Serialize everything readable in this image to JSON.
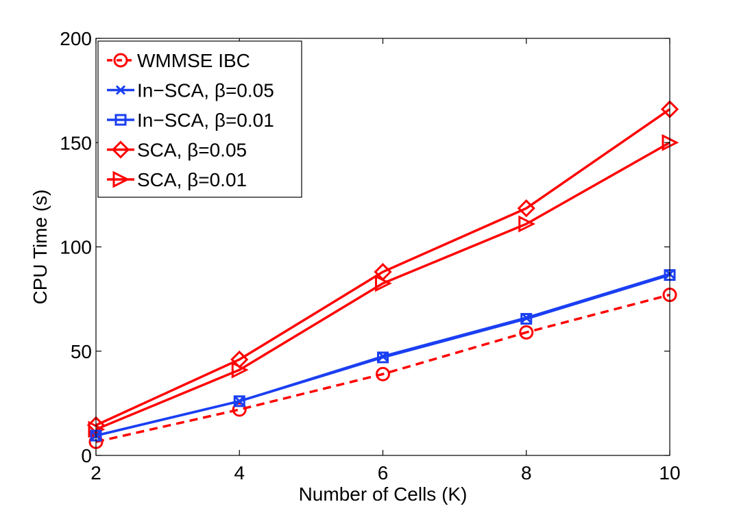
{
  "chart_data": {
    "type": "line",
    "title": "",
    "xlabel": "Number of Cells (K)",
    "ylabel": "CPU Time (s)",
    "xlim": [
      2,
      10
    ],
    "ylim": [
      0,
      200
    ],
    "x_ticks": [
      2,
      4,
      6,
      8,
      10
    ],
    "y_ticks": [
      0,
      50,
      100,
      150,
      200
    ],
    "grid": false,
    "legend_position": "top-left",
    "x": [
      2,
      4,
      6,
      8,
      10
    ],
    "series": [
      {
        "name": "WMMSE IBC",
        "values": [
          6.5,
          22,
          39,
          59,
          77
        ],
        "color": "#ff0000",
        "dash": "dashed",
        "marker": "circle"
      },
      {
        "name": "In−SCA, β=0.05",
        "values": [
          9.5,
          26,
          47.5,
          66,
          87
        ],
        "color": "#1a3ff2",
        "dash": "solid",
        "marker": "x"
      },
      {
        "name": "In−SCA, β=0.01",
        "values": [
          9.5,
          26,
          47,
          65.5,
          86.5
        ],
        "color": "#1a3ff2",
        "dash": "solid",
        "marker": "square"
      },
      {
        "name": "SCA, β=0.05",
        "values": [
          14.5,
          46,
          88,
          118.5,
          166
        ],
        "color": "#ff0000",
        "dash": "solid",
        "marker": "diamond"
      },
      {
        "name": "SCA, β=0.01",
        "values": [
          12.5,
          41,
          82.5,
          111,
          150
        ],
        "color": "#ff0000",
        "dash": "solid",
        "marker": "triangle-right"
      }
    ]
  }
}
